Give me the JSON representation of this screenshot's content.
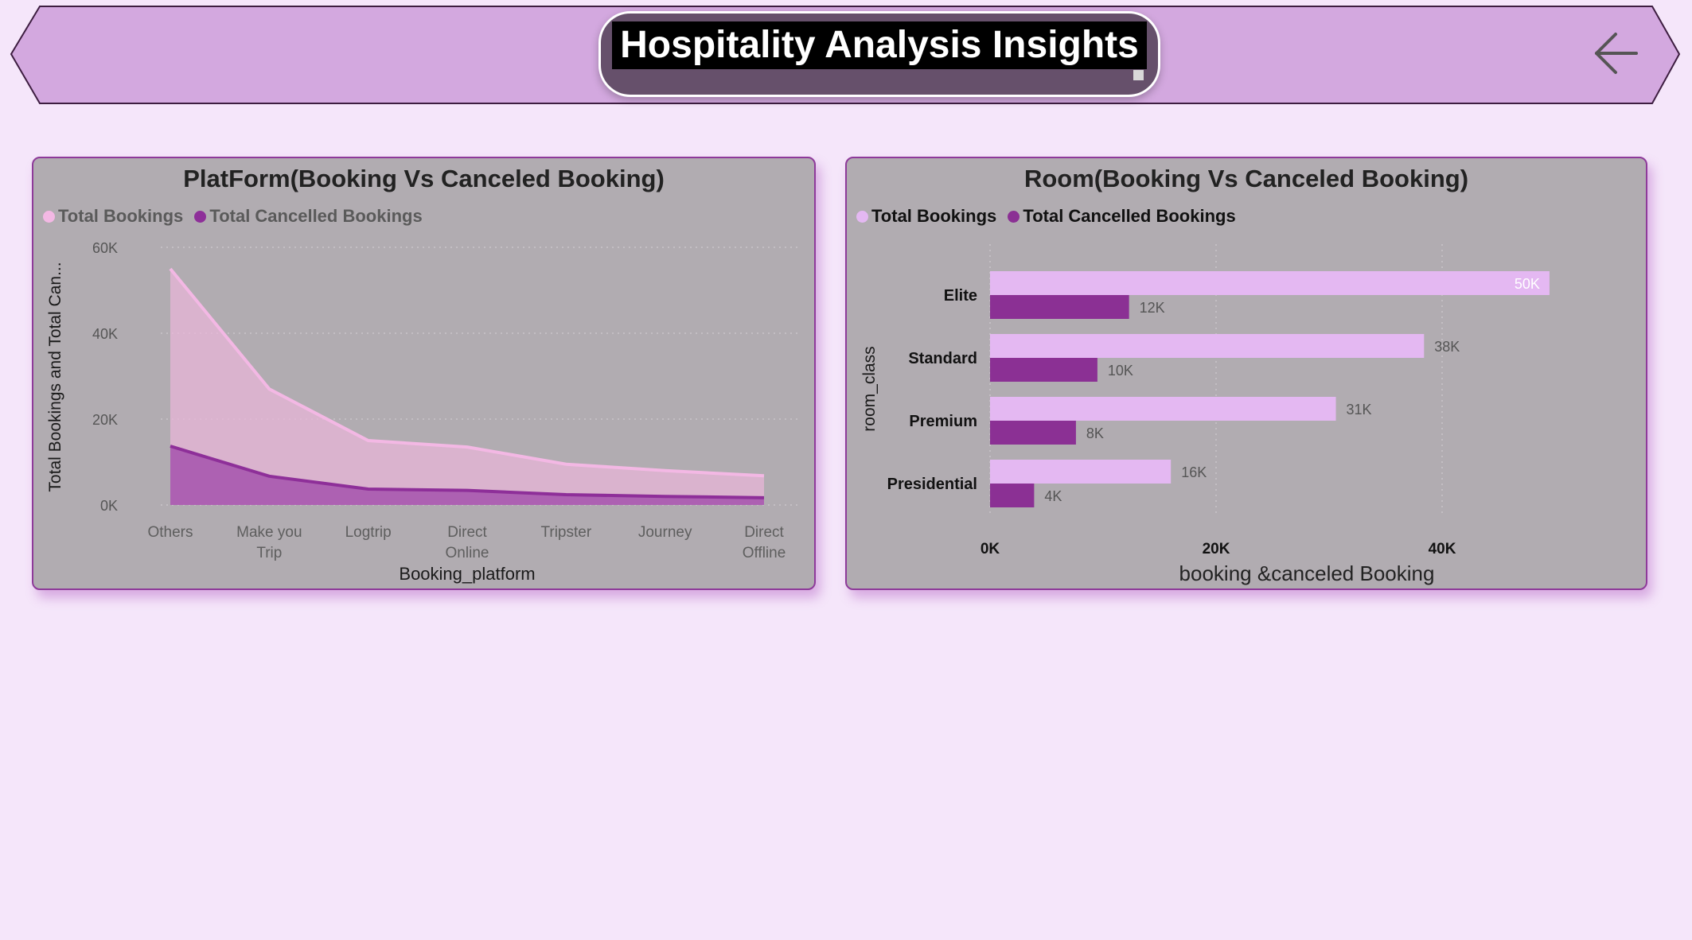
{
  "header": {
    "title": "Hospitality Analysis Insights",
    "back_icon": "arrow-left-icon"
  },
  "colors": {
    "page_bg": "#f5e6fa",
    "banner": "#d3a8df",
    "card_bg": "#b1acb1",
    "total_bookings_platform": "#f3b8e4",
    "cancelled_platform": "#8e2f99",
    "total_bookings_room": "#e4b8f2",
    "cancelled_room": "#8b3094"
  },
  "chart_data": [
    {
      "type": "area",
      "title": "PlatForm(Booking Vs Canceled Booking)",
      "xlabel": "Booking_platform",
      "ylabel": "Total Bookings and Total Can...",
      "categories": [
        "Others",
        "Make you Trip",
        "Logtrip",
        "Direct Online",
        "Tripster",
        "Journey",
        "Direct Offline"
      ],
      "series": [
        {
          "name": "Total Bookings",
          "values": [
            55000,
            27000,
            15000,
            13500,
            9500,
            8000,
            6800
          ]
        },
        {
          "name": "Total Cancelled Bookings",
          "values": [
            13700,
            6700,
            3700,
            3400,
            2400,
            2000,
            1700
          ]
        }
      ],
      "ylim": [
        0,
        60000
      ],
      "yticks": [
        "0K",
        "20K",
        "40K",
        "60K"
      ],
      "grid": true,
      "legend_position": "top-left"
    },
    {
      "type": "bar",
      "orientation": "horizontal",
      "title": "Room(Booking Vs Canceled Booking)",
      "xlabel": "booking &canceled Booking",
      "ylabel": "room_class",
      "categories": [
        "Elite",
        "Standard",
        "Premium",
        "Presidential"
      ],
      "series": [
        {
          "name": "Total Bookings",
          "values": [
            49500,
            38400,
            30600,
            16000
          ],
          "labels": [
            "50K",
            "38K",
            "31K",
            "16K"
          ]
        },
        {
          "name": "Total Cancelled Bookings",
          "values": [
            12300,
            9500,
            7600,
            3900
          ],
          "labels": [
            "12K",
            "10K",
            "8K",
            "4K"
          ]
        }
      ],
      "xlim": [
        0,
        50000
      ],
      "xticks": [
        "0K",
        "20K",
        "40K"
      ],
      "grid": true,
      "legend_position": "top-left"
    }
  ]
}
